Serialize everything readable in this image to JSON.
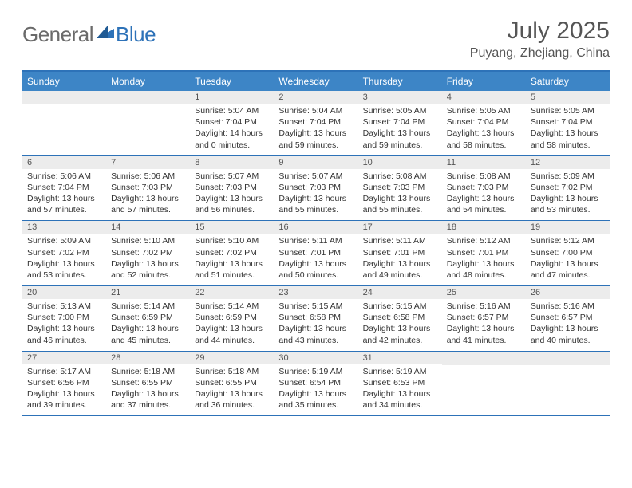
{
  "logo": {
    "word1": "General",
    "word2": "Blue"
  },
  "title": "July 2025",
  "location": "Puyang, Zhejiang, China",
  "colors": {
    "brand_blue": "#2d72b8",
    "header_blue": "#3d85c6",
    "text_gray": "#555555",
    "row_gray": "#ececec",
    "background": "#ffffff"
  },
  "typography": {
    "title_size": 30,
    "location_size": 16,
    "weekday_size": 12,
    "daynum_size": 11,
    "body_size": 10.5
  },
  "weekdays": [
    "Sunday",
    "Monday",
    "Tuesday",
    "Wednesday",
    "Thursday",
    "Friday",
    "Saturday"
  ],
  "weeks": [
    [
      {
        "empty": true
      },
      {
        "empty": true
      },
      {
        "num": "1",
        "sunrise": "Sunrise: 5:04 AM",
        "sunset": "Sunset: 7:04 PM",
        "daylight1": "Daylight: 14 hours",
        "daylight2": "and 0 minutes."
      },
      {
        "num": "2",
        "sunrise": "Sunrise: 5:04 AM",
        "sunset": "Sunset: 7:04 PM",
        "daylight1": "Daylight: 13 hours",
        "daylight2": "and 59 minutes."
      },
      {
        "num": "3",
        "sunrise": "Sunrise: 5:05 AM",
        "sunset": "Sunset: 7:04 PM",
        "daylight1": "Daylight: 13 hours",
        "daylight2": "and 59 minutes."
      },
      {
        "num": "4",
        "sunrise": "Sunrise: 5:05 AM",
        "sunset": "Sunset: 7:04 PM",
        "daylight1": "Daylight: 13 hours",
        "daylight2": "and 58 minutes."
      },
      {
        "num": "5",
        "sunrise": "Sunrise: 5:05 AM",
        "sunset": "Sunset: 7:04 PM",
        "daylight1": "Daylight: 13 hours",
        "daylight2": "and 58 minutes."
      }
    ],
    [
      {
        "num": "6",
        "sunrise": "Sunrise: 5:06 AM",
        "sunset": "Sunset: 7:04 PM",
        "daylight1": "Daylight: 13 hours",
        "daylight2": "and 57 minutes."
      },
      {
        "num": "7",
        "sunrise": "Sunrise: 5:06 AM",
        "sunset": "Sunset: 7:03 PM",
        "daylight1": "Daylight: 13 hours",
        "daylight2": "and 57 minutes."
      },
      {
        "num": "8",
        "sunrise": "Sunrise: 5:07 AM",
        "sunset": "Sunset: 7:03 PM",
        "daylight1": "Daylight: 13 hours",
        "daylight2": "and 56 minutes."
      },
      {
        "num": "9",
        "sunrise": "Sunrise: 5:07 AM",
        "sunset": "Sunset: 7:03 PM",
        "daylight1": "Daylight: 13 hours",
        "daylight2": "and 55 minutes."
      },
      {
        "num": "10",
        "sunrise": "Sunrise: 5:08 AM",
        "sunset": "Sunset: 7:03 PM",
        "daylight1": "Daylight: 13 hours",
        "daylight2": "and 55 minutes."
      },
      {
        "num": "11",
        "sunrise": "Sunrise: 5:08 AM",
        "sunset": "Sunset: 7:03 PM",
        "daylight1": "Daylight: 13 hours",
        "daylight2": "and 54 minutes."
      },
      {
        "num": "12",
        "sunrise": "Sunrise: 5:09 AM",
        "sunset": "Sunset: 7:02 PM",
        "daylight1": "Daylight: 13 hours",
        "daylight2": "and 53 minutes."
      }
    ],
    [
      {
        "num": "13",
        "sunrise": "Sunrise: 5:09 AM",
        "sunset": "Sunset: 7:02 PM",
        "daylight1": "Daylight: 13 hours",
        "daylight2": "and 53 minutes."
      },
      {
        "num": "14",
        "sunrise": "Sunrise: 5:10 AM",
        "sunset": "Sunset: 7:02 PM",
        "daylight1": "Daylight: 13 hours",
        "daylight2": "and 52 minutes."
      },
      {
        "num": "15",
        "sunrise": "Sunrise: 5:10 AM",
        "sunset": "Sunset: 7:02 PM",
        "daylight1": "Daylight: 13 hours",
        "daylight2": "and 51 minutes."
      },
      {
        "num": "16",
        "sunrise": "Sunrise: 5:11 AM",
        "sunset": "Sunset: 7:01 PM",
        "daylight1": "Daylight: 13 hours",
        "daylight2": "and 50 minutes."
      },
      {
        "num": "17",
        "sunrise": "Sunrise: 5:11 AM",
        "sunset": "Sunset: 7:01 PM",
        "daylight1": "Daylight: 13 hours",
        "daylight2": "and 49 minutes."
      },
      {
        "num": "18",
        "sunrise": "Sunrise: 5:12 AM",
        "sunset": "Sunset: 7:01 PM",
        "daylight1": "Daylight: 13 hours",
        "daylight2": "and 48 minutes."
      },
      {
        "num": "19",
        "sunrise": "Sunrise: 5:12 AM",
        "sunset": "Sunset: 7:00 PM",
        "daylight1": "Daylight: 13 hours",
        "daylight2": "and 47 minutes."
      }
    ],
    [
      {
        "num": "20",
        "sunrise": "Sunrise: 5:13 AM",
        "sunset": "Sunset: 7:00 PM",
        "daylight1": "Daylight: 13 hours",
        "daylight2": "and 46 minutes."
      },
      {
        "num": "21",
        "sunrise": "Sunrise: 5:14 AM",
        "sunset": "Sunset: 6:59 PM",
        "daylight1": "Daylight: 13 hours",
        "daylight2": "and 45 minutes."
      },
      {
        "num": "22",
        "sunrise": "Sunrise: 5:14 AM",
        "sunset": "Sunset: 6:59 PM",
        "daylight1": "Daylight: 13 hours",
        "daylight2": "and 44 minutes."
      },
      {
        "num": "23",
        "sunrise": "Sunrise: 5:15 AM",
        "sunset": "Sunset: 6:58 PM",
        "daylight1": "Daylight: 13 hours",
        "daylight2": "and 43 minutes."
      },
      {
        "num": "24",
        "sunrise": "Sunrise: 5:15 AM",
        "sunset": "Sunset: 6:58 PM",
        "daylight1": "Daylight: 13 hours",
        "daylight2": "and 42 minutes."
      },
      {
        "num": "25",
        "sunrise": "Sunrise: 5:16 AM",
        "sunset": "Sunset: 6:57 PM",
        "daylight1": "Daylight: 13 hours",
        "daylight2": "and 41 minutes."
      },
      {
        "num": "26",
        "sunrise": "Sunrise: 5:16 AM",
        "sunset": "Sunset: 6:57 PM",
        "daylight1": "Daylight: 13 hours",
        "daylight2": "and 40 minutes."
      }
    ],
    [
      {
        "num": "27",
        "sunrise": "Sunrise: 5:17 AM",
        "sunset": "Sunset: 6:56 PM",
        "daylight1": "Daylight: 13 hours",
        "daylight2": "and 39 minutes."
      },
      {
        "num": "28",
        "sunrise": "Sunrise: 5:18 AM",
        "sunset": "Sunset: 6:55 PM",
        "daylight1": "Daylight: 13 hours",
        "daylight2": "and 37 minutes."
      },
      {
        "num": "29",
        "sunrise": "Sunrise: 5:18 AM",
        "sunset": "Sunset: 6:55 PM",
        "daylight1": "Daylight: 13 hours",
        "daylight2": "and 36 minutes."
      },
      {
        "num": "30",
        "sunrise": "Sunrise: 5:19 AM",
        "sunset": "Sunset: 6:54 PM",
        "daylight1": "Daylight: 13 hours",
        "daylight2": "and 35 minutes."
      },
      {
        "num": "31",
        "sunrise": "Sunrise: 5:19 AM",
        "sunset": "Sunset: 6:53 PM",
        "daylight1": "Daylight: 13 hours",
        "daylight2": "and 34 minutes."
      },
      {
        "empty": true
      },
      {
        "empty": true
      }
    ]
  ]
}
